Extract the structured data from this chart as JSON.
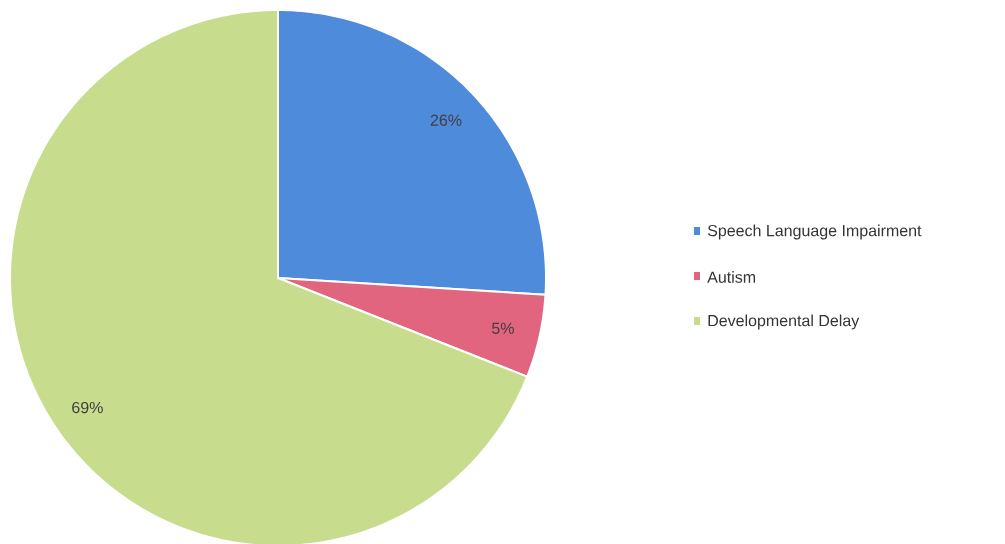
{
  "chart_data": {
    "type": "pie",
    "categories": [
      "Speech Language Impairment",
      "Autism",
      "Developmental Delay"
    ],
    "values": [
      26,
      5,
      69
    ],
    "colors": [
      "#4f8bdb",
      "#e2657f",
      "#c8dc8e"
    ],
    "value_labels": [
      "26%",
      "5%",
      "69%"
    ],
    "legend": "right"
  }
}
